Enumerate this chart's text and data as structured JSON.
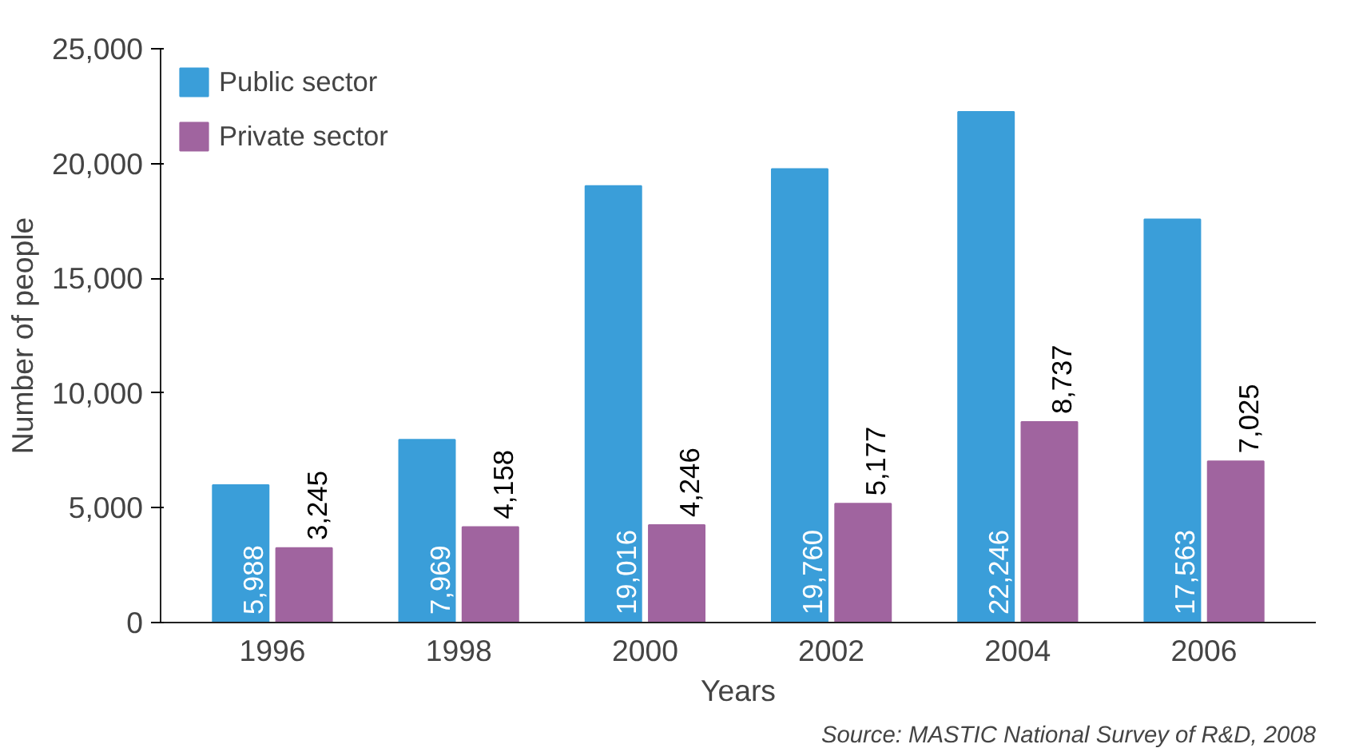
{
  "chart_data": {
    "type": "bar",
    "xlabel": "Years",
    "ylabel": "Number of people",
    "categories": [
      "1996",
      "1998",
      "2000",
      "2002",
      "2004",
      "2006"
    ],
    "series": [
      {
        "name": "Public sector",
        "color": "#3a9ed9",
        "values": [
          5988,
          7969,
          19016,
          19760,
          22246,
          17563
        ],
        "value_labels": [
          "5,988",
          "7,969",
          "19,016",
          "19,760",
          "22,246",
          "17,563"
        ]
      },
      {
        "name": "Private sector",
        "color": "#a0649f",
        "values": [
          3245,
          4158,
          4246,
          5177,
          8737,
          7025
        ],
        "value_labels": [
          "3,245",
          "4,158",
          "4,246",
          "5,177",
          "8,737",
          "7,025"
        ]
      }
    ],
    "ylim": [
      0,
      25000
    ],
    "yticks": [
      {
        "value": 0,
        "label": "0"
      },
      {
        "value": 5000,
        "label": "5,000"
      },
      {
        "value": 10000,
        "label": "10,000"
      },
      {
        "value": 15000,
        "label": "15,000"
      },
      {
        "value": 20000,
        "label": "20,000"
      },
      {
        "value": 25000,
        "label": "25,000"
      }
    ],
    "legend": "top left",
    "grid": false,
    "annotations": [
      "Source: MASTIC National Survey of R&D, 2008"
    ]
  }
}
